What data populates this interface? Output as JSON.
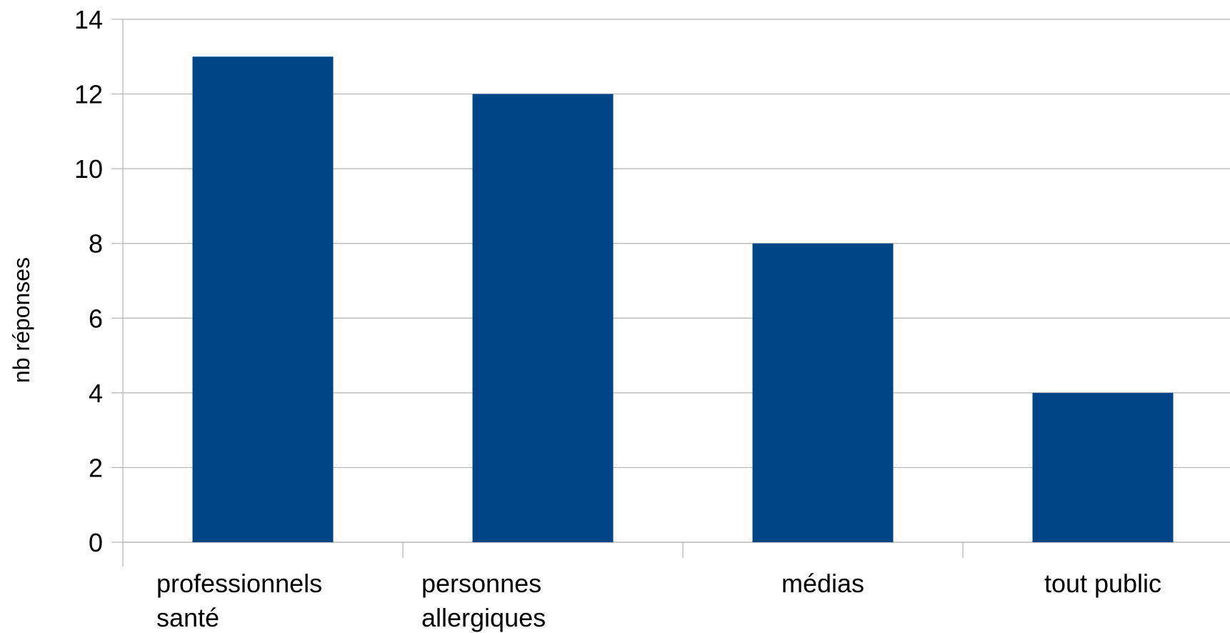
{
  "chart_data": {
    "type": "bar",
    "title": "",
    "xlabel": "",
    "ylabel": "nb réponses",
    "categories": [
      [
        "professionnels",
        "santé"
      ],
      [
        "personnes",
        "allergiques"
      ],
      [
        "médias"
      ],
      [
        "tout public"
      ]
    ],
    "values": [
      13,
      12,
      8,
      4
    ],
    "ylim": [
      0,
      14
    ],
    "yticks": [
      0,
      2,
      4,
      6,
      8,
      10,
      12,
      14
    ],
    "grid": true,
    "legend": "none",
    "colors": {
      "bar": "#004586",
      "grid": "#b3b3b3",
      "axis": "#b3b3b3"
    }
  }
}
